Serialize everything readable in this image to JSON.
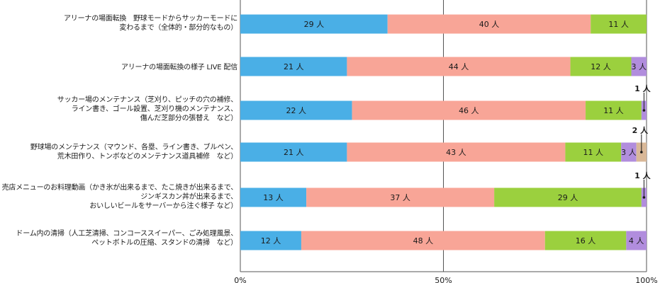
{
  "chart_data": {
    "type": "bar",
    "orientation": "horizontal",
    "stacked": true,
    "percent_scale": true,
    "categories": [
      "アリーナの場面転換　野球モードからサッカーモードに\n変わるまで（全体的・部分的なもの）",
      "アリーナの場面転換の様子 LIVE 配信",
      "サッカー場のメンテナンス（芝刈り、ピッチの穴の補修、\nライン書き、ゴール設置、芝刈り機のメンテナンス、\n傷んだ芝部分の張替え　など）",
      "野球場のメンテナンス（マウンド、各塁、ライン書き、ブルペン、\n荒木田作り、トンボなどのメンテナンス道具補修　など）",
      "売店メニューのお料理動画（かき氷が出来るまで、たこ焼きが出来るまで、\nジンギスカン丼が出来るまで、\nおいしいビールをサーバーから注ぐ様子 など）",
      "ドーム内の清掃（人工芝清掃、コンコーススイーパー、ごみ処理風景、\nペットボトルの圧縮、スタンドの清掃　など）"
    ],
    "series": [
      {
        "color": "#4aafe6",
        "values": [
          29,
          21,
          22,
          21,
          13,
          12
        ]
      },
      {
        "color": "#f8a597",
        "values": [
          40,
          44,
          46,
          43,
          37,
          48
        ]
      },
      {
        "color": "#9bd03e",
        "values": [
          11,
          12,
          11,
          11,
          29,
          16
        ]
      },
      {
        "color": "#b18ddd",
        "values": [
          0,
          3,
          1,
          3,
          1,
          4
        ]
      },
      {
        "color": "#d9b898",
        "values": [
          0,
          0,
          0,
          2,
          0,
          0
        ]
      }
    ],
    "unit_suffix": " 人",
    "callouts": [
      {
        "category_index": 2,
        "series_index": 3,
        "label": "1 人"
      },
      {
        "category_index": 3,
        "series_index": 4,
        "label": "2 人"
      },
      {
        "category_index": 4,
        "series_index": 3,
        "label": "1 人"
      }
    ],
    "x_ticks": [
      "0%",
      "50%",
      "100%"
    ],
    "xlim": [
      0,
      100
    ],
    "grid": "vertical",
    "legend": "none"
  }
}
